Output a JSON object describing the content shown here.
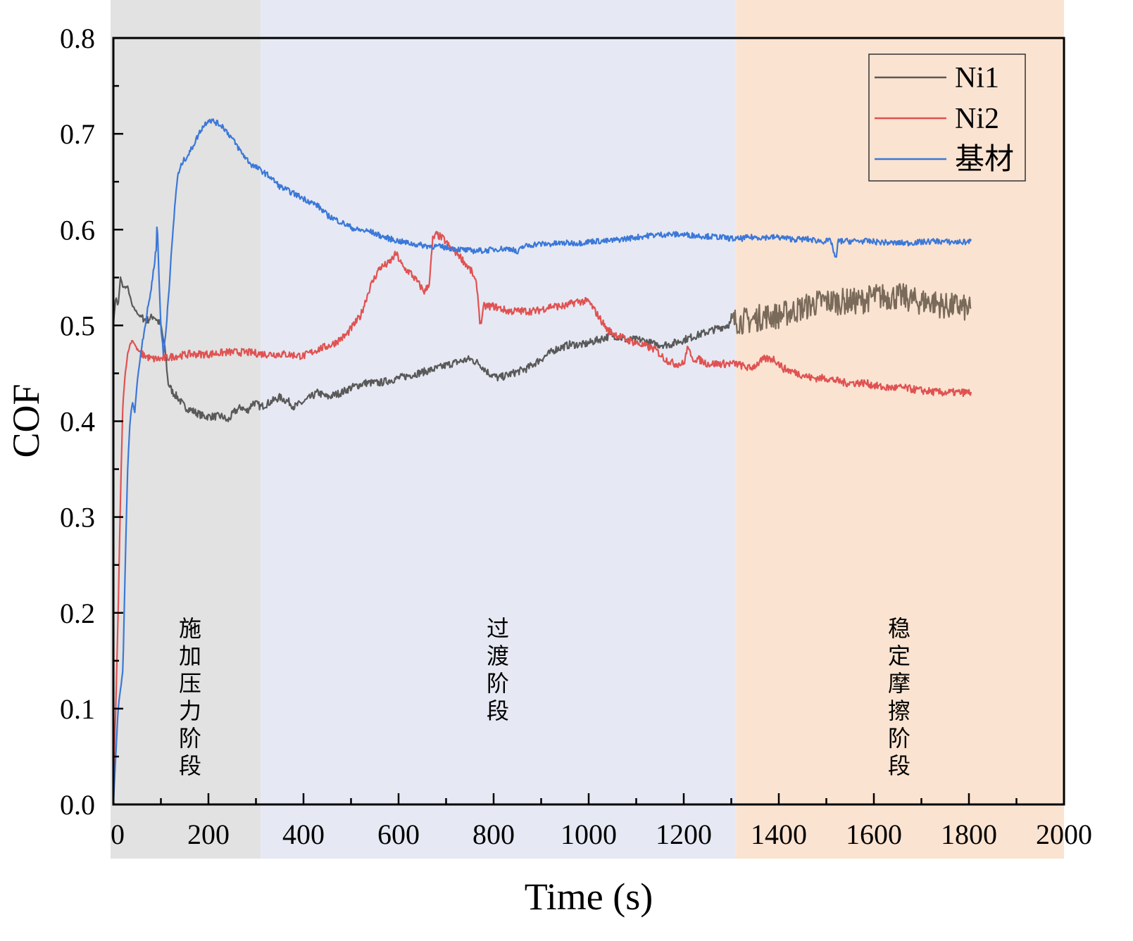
{
  "chart_data": {
    "type": "line",
    "title": "",
    "xlabel": "Time (s)",
    "ylabel": "COF",
    "xlim": [
      0,
      2000
    ],
    "ylim": [
      0.0,
      0.8
    ],
    "x_ticks": [
      "0",
      "200",
      "400",
      "600",
      "800",
      "1000",
      "1200",
      "1400",
      "1600",
      "1800",
      "2000"
    ],
    "y_ticks": [
      "0.0",
      "0.1",
      "0.2",
      "0.3",
      "0.4",
      "0.5",
      "0.6",
      "0.7",
      "0.8"
    ],
    "grid": false,
    "legend_position": "top-right",
    "stages": [
      {
        "label": "施加压力阶段",
        "x_start": 0,
        "x_end": 310,
        "color": "#e2e2e2"
      },
      {
        "label": "过渡阶段",
        "x_start": 310,
        "x_end": 1310,
        "color": "#e6e9f3"
      },
      {
        "label": "稳定摩擦阶段",
        "x_start": 1310,
        "x_end": 2000,
        "color": "#fae3d1"
      }
    ],
    "series": [
      {
        "name": "Ni1",
        "color": "#595959",
        "color_late": "#7a6a5a",
        "noise": 0.004,
        "points": [
          [
            0,
            0.5
          ],
          [
            5,
            0.53
          ],
          [
            10,
            0.52
          ],
          [
            15,
            0.55
          ],
          [
            20,
            0.54
          ],
          [
            30,
            0.54
          ],
          [
            40,
            0.52
          ],
          [
            55,
            0.51
          ],
          [
            70,
            0.505
          ],
          [
            85,
            0.51
          ],
          [
            100,
            0.5
          ],
          [
            110,
            0.47
          ],
          [
            115,
            0.44
          ],
          [
            125,
            0.43
          ],
          [
            135,
            0.425
          ],
          [
            150,
            0.415
          ],
          [
            170,
            0.41
          ],
          [
            190,
            0.405
          ],
          [
            210,
            0.405
          ],
          [
            230,
            0.405
          ],
          [
            240,
            0.4
          ],
          [
            255,
            0.41
          ],
          [
            270,
            0.415
          ],
          [
            280,
            0.41
          ],
          [
            295,
            0.42
          ],
          [
            310,
            0.415
          ],
          [
            330,
            0.42
          ],
          [
            350,
            0.425
          ],
          [
            370,
            0.42
          ],
          [
            380,
            0.415
          ],
          [
            400,
            0.42
          ],
          [
            430,
            0.43
          ],
          [
            450,
            0.425
          ],
          [
            480,
            0.43
          ],
          [
            500,
            0.435
          ],
          [
            530,
            0.44
          ],
          [
            560,
            0.44
          ],
          [
            600,
            0.445
          ],
          [
            640,
            0.45
          ],
          [
            680,
            0.455
          ],
          [
            710,
            0.46
          ],
          [
            750,
            0.465
          ],
          [
            770,
            0.46
          ],
          [
            790,
            0.45
          ],
          [
            810,
            0.445
          ],
          [
            840,
            0.45
          ],
          [
            870,
            0.455
          ],
          [
            900,
            0.465
          ],
          [
            930,
            0.475
          ],
          [
            960,
            0.48
          ],
          [
            990,
            0.48
          ],
          [
            1020,
            0.485
          ],
          [
            1050,
            0.49
          ],
          [
            1080,
            0.485
          ],
          [
            1110,
            0.485
          ],
          [
            1140,
            0.48
          ],
          [
            1170,
            0.48
          ],
          [
            1200,
            0.485
          ],
          [
            1230,
            0.49
          ],
          [
            1260,
            0.495
          ],
          [
            1290,
            0.5
          ],
          [
            1310,
            0.505
          ],
          [
            1340,
            0.505
          ],
          [
            1370,
            0.51
          ],
          [
            1400,
            0.51
          ],
          [
            1430,
            0.515
          ],
          [
            1460,
            0.52
          ],
          [
            1490,
            0.525
          ],
          [
            1510,
            0.525
          ],
          [
            1540,
            0.525
          ],
          [
            1570,
            0.525
          ],
          [
            1600,
            0.53
          ],
          [
            1630,
            0.53
          ],
          [
            1660,
            0.53
          ],
          [
            1690,
            0.525
          ],
          [
            1720,
            0.525
          ],
          [
            1750,
            0.52
          ],
          [
            1780,
            0.52
          ],
          [
            1805,
            0.515
          ]
        ]
      },
      {
        "name": "Ni2",
        "color": "#e05252",
        "noise": 0.004,
        "points": [
          [
            0,
            0.02
          ],
          [
            5,
            0.1
          ],
          [
            10,
            0.2
          ],
          [
            15,
            0.32
          ],
          [
            20,
            0.42
          ],
          [
            25,
            0.45
          ],
          [
            30,
            0.47
          ],
          [
            35,
            0.48
          ],
          [
            40,
            0.485
          ],
          [
            50,
            0.475
          ],
          [
            60,
            0.47
          ],
          [
            80,
            0.465
          ],
          [
            100,
            0.465
          ],
          [
            130,
            0.468
          ],
          [
            160,
            0.47
          ],
          [
            200,
            0.47
          ],
          [
            240,
            0.472
          ],
          [
            280,
            0.472
          ],
          [
            320,
            0.47
          ],
          [
            360,
            0.47
          ],
          [
            400,
            0.468
          ],
          [
            430,
            0.475
          ],
          [
            460,
            0.48
          ],
          [
            490,
            0.49
          ],
          [
            520,
            0.51
          ],
          [
            540,
            0.54
          ],
          [
            560,
            0.56
          ],
          [
            580,
            0.565
          ],
          [
            595,
            0.575
          ],
          [
            610,
            0.56
          ],
          [
            625,
            0.555
          ],
          [
            640,
            0.545
          ],
          [
            655,
            0.535
          ],
          [
            665,
            0.545
          ],
          [
            672,
            0.59
          ],
          [
            680,
            0.595
          ],
          [
            695,
            0.59
          ],
          [
            710,
            0.58
          ],
          [
            725,
            0.575
          ],
          [
            740,
            0.565
          ],
          [
            755,
            0.555
          ],
          [
            765,
            0.54
          ],
          [
            772,
            0.5
          ],
          [
            780,
            0.52
          ],
          [
            800,
            0.52
          ],
          [
            830,
            0.515
          ],
          [
            860,
            0.515
          ],
          [
            890,
            0.515
          ],
          [
            920,
            0.52
          ],
          [
            950,
            0.52
          ],
          [
            975,
            0.525
          ],
          [
            1000,
            0.525
          ],
          [
            1020,
            0.51
          ],
          [
            1040,
            0.495
          ],
          [
            1060,
            0.49
          ],
          [
            1080,
            0.485
          ],
          [
            1110,
            0.48
          ],
          [
            1140,
            0.475
          ],
          [
            1160,
            0.465
          ],
          [
            1180,
            0.46
          ],
          [
            1200,
            0.46
          ],
          [
            1210,
            0.48
          ],
          [
            1215,
            0.465
          ],
          [
            1230,
            0.465
          ],
          [
            1250,
            0.46
          ],
          [
            1270,
            0.46
          ],
          [
            1290,
            0.46
          ],
          [
            1310,
            0.46
          ],
          [
            1340,
            0.455
          ],
          [
            1370,
            0.465
          ],
          [
            1390,
            0.465
          ],
          [
            1410,
            0.455
          ],
          [
            1440,
            0.45
          ],
          [
            1470,
            0.445
          ],
          [
            1500,
            0.445
          ],
          [
            1540,
            0.44
          ],
          [
            1580,
            0.44
          ],
          [
            1620,
            0.435
          ],
          [
            1660,
            0.435
          ],
          [
            1700,
            0.432
          ],
          [
            1740,
            0.43
          ],
          [
            1780,
            0.43
          ],
          [
            1805,
            0.43
          ]
        ]
      },
      {
        "name": "基材",
        "color": "#3b78d8",
        "noise": 0.003,
        "points": [
          [
            0,
            0.0
          ],
          [
            5,
            0.05
          ],
          [
            10,
            0.1
          ],
          [
            15,
            0.12
          ],
          [
            20,
            0.14
          ],
          [
            25,
            0.25
          ],
          [
            30,
            0.35
          ],
          [
            35,
            0.4
          ],
          [
            40,
            0.42
          ],
          [
            45,
            0.41
          ],
          [
            50,
            0.44
          ],
          [
            60,
            0.48
          ],
          [
            70,
            0.51
          ],
          [
            80,
            0.54
          ],
          [
            90,
            0.58
          ],
          [
            92,
            0.61
          ],
          [
            96,
            0.55
          ],
          [
            100,
            0.5
          ],
          [
            105,
            0.47
          ],
          [
            110,
            0.49
          ],
          [
            120,
            0.56
          ],
          [
            130,
            0.63
          ],
          [
            135,
            0.655
          ],
          [
            145,
            0.67
          ],
          [
            160,
            0.68
          ],
          [
            175,
            0.695
          ],
          [
            185,
            0.705
          ],
          [
            200,
            0.715
          ],
          [
            215,
            0.712
          ],
          [
            230,
            0.708
          ],
          [
            250,
            0.695
          ],
          [
            270,
            0.68
          ],
          [
            290,
            0.668
          ],
          [
            310,
            0.662
          ],
          [
            330,
            0.655
          ],
          [
            350,
            0.645
          ],
          [
            370,
            0.64
          ],
          [
            390,
            0.635
          ],
          [
            410,
            0.63
          ],
          [
            430,
            0.625
          ],
          [
            450,
            0.615
          ],
          [
            470,
            0.61
          ],
          [
            490,
            0.605
          ],
          [
            510,
            0.6
          ],
          [
            540,
            0.598
          ],
          [
            570,
            0.592
          ],
          [
            600,
            0.588
          ],
          [
            630,
            0.585
          ],
          [
            660,
            0.583
          ],
          [
            690,
            0.582
          ],
          [
            720,
            0.58
          ],
          [
            750,
            0.578
          ],
          [
            780,
            0.578
          ],
          [
            810,
            0.58
          ],
          [
            840,
            0.58
          ],
          [
            850,
            0.575
          ],
          [
            860,
            0.582
          ],
          [
            890,
            0.585
          ],
          [
            920,
            0.585
          ],
          [
            950,
            0.586
          ],
          [
            980,
            0.586
          ],
          [
            1010,
            0.588
          ],
          [
            1040,
            0.588
          ],
          [
            1070,
            0.59
          ],
          [
            1100,
            0.592
          ],
          [
            1130,
            0.594
          ],
          [
            1160,
            0.595
          ],
          [
            1190,
            0.595
          ],
          [
            1220,
            0.594
          ],
          [
            1250,
            0.593
          ],
          [
            1280,
            0.592
          ],
          [
            1310,
            0.59
          ],
          [
            1340,
            0.592
          ],
          [
            1370,
            0.592
          ],
          [
            1400,
            0.592
          ],
          [
            1430,
            0.59
          ],
          [
            1460,
            0.59
          ],
          [
            1490,
            0.588
          ],
          [
            1510,
            0.588
          ],
          [
            1520,
            0.568
          ],
          [
            1525,
            0.588
          ],
          [
            1550,
            0.588
          ],
          [
            1580,
            0.588
          ],
          [
            1610,
            0.587
          ],
          [
            1640,
            0.586
          ],
          [
            1670,
            0.586
          ],
          [
            1700,
            0.587
          ],
          [
            1730,
            0.588
          ],
          [
            1760,
            0.587
          ],
          [
            1790,
            0.587
          ],
          [
            1805,
            0.588
          ]
        ]
      }
    ]
  }
}
